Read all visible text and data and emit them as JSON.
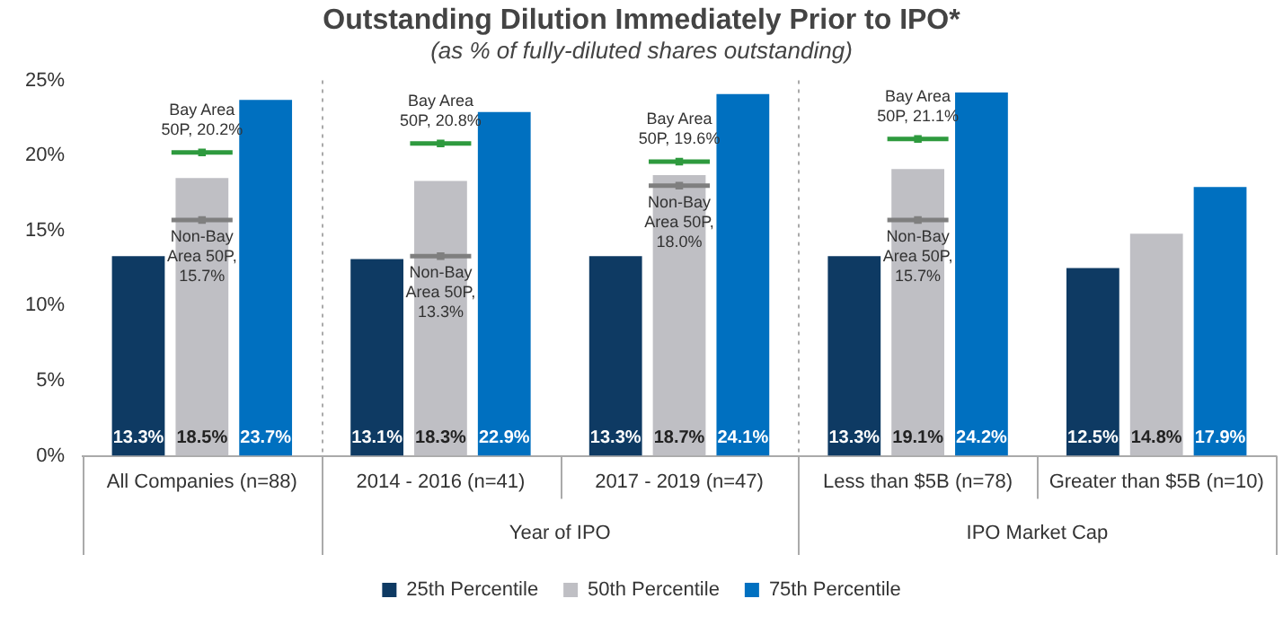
{
  "chart_data": {
    "type": "bar",
    "title": "Outstanding Dilution Immediately Prior to IPO*",
    "subtitle": "(as % of fully-diluted shares outstanding)",
    "categories": [
      "All Companies (n=88)",
      "2014 - 2016 (n=41)",
      "2017 - 2019 (n=47)",
      "Less than $5B (n=78)",
      "Greater than $5B (n=10)"
    ],
    "series": [
      {
        "name": "25th Percentile",
        "color": "#0e3a63",
        "values": [
          13.3,
          13.1,
          13.3,
          13.3,
          12.5
        ],
        "value_labels": [
          "13.3%",
          "13.1%",
          "13.3%",
          "13.3%",
          "12.5%"
        ]
      },
      {
        "name": "50th Percentile",
        "color": "#bfbfc4",
        "values": [
          18.5,
          18.3,
          18.7,
          19.1,
          14.8
        ],
        "value_labels": [
          "18.5%",
          "18.3%",
          "18.7%",
          "19.1%",
          "14.8%"
        ]
      },
      {
        "name": "75th Percentile",
        "color": "#0070c0",
        "values": [
          23.7,
          22.9,
          24.1,
          24.2,
          17.9
        ],
        "value_labels": [
          "23.7%",
          "22.9%",
          "24.1%",
          "24.2%",
          "17.9%"
        ]
      },
      {
        "type": "scatter",
        "color": "#2e9a3e",
        "values": [
          20.2,
          20.8,
          19.6,
          21.1,
          null
        ],
        "value_labels": [
          "Bay Area 50P, 20.2%",
          "Bay Area 50P, 20.8%",
          "Bay Area 50P, 19.6%",
          "Bay Area 50P, 21.1%",
          null
        ]
      },
      {
        "type": "scatter",
        "color": "#7f7f7f",
        "values": [
          15.7,
          13.3,
          18.0,
          15.7,
          null
        ],
        "value_labels": [
          "Non-Bay Area 50P, 15.7%",
          "Non-Bay Area 50P, 13.3%",
          "Non-Bay Area 50P, 18.0%",
          "Non-Bay Area 50P, 15.7%",
          null
        ]
      }
    ],
    "ylim": [
      0,
      25
    ],
    "yticks": [
      {
        "value": 0,
        "label": "0%"
      },
      {
        "value": 5,
        "label": "5%"
      },
      {
        "value": 10,
        "label": "10%"
      },
      {
        "value": 15,
        "label": "15%"
      },
      {
        "value": 20,
        "label": "20%"
      },
      {
        "value": 25,
        "label": "25%"
      }
    ],
    "grid": false,
    "legend": "bottom",
    "annotations": [
      "Year of IPO",
      "IPO Market Cap"
    ]
  }
}
